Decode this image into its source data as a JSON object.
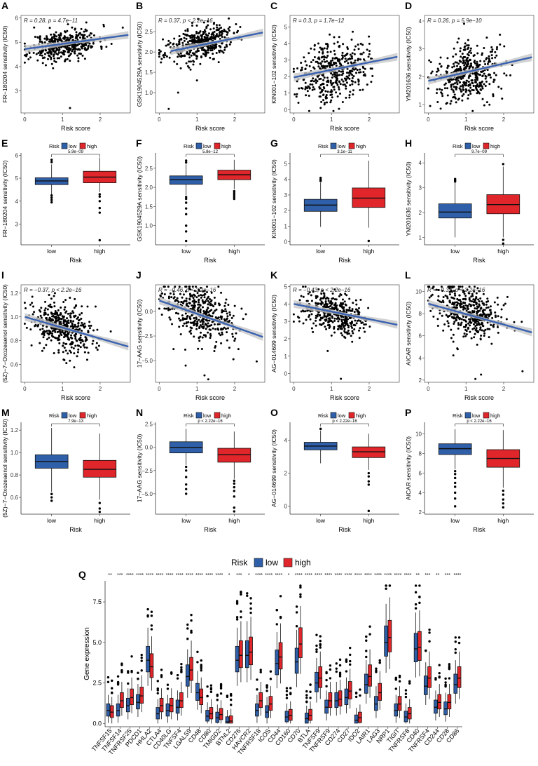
{
  "figure": {
    "colors": {
      "low": "#2f5fa8",
      "high": "#e0262a",
      "line": "#3a62b0",
      "band": "#c8c8c8",
      "point": "#000000"
    },
    "risk_legend": {
      "title": "Risk",
      "low": "low",
      "high": "high"
    }
  },
  "chart_data": [
    {
      "id": "A",
      "type": "scatter",
      "title": "",
      "xlabel": "Risk score",
      "ylabel": "FR−180204 sensitivity (IC50)",
      "stat": "R = 0.28, p = 4.7e−11",
      "xlim": [
        -0.1,
        2.8
      ],
      "ylim": [
        2.1,
        6.1
      ],
      "xticks": [
        "0",
        "1",
        "2"
      ],
      "yticks": [
        "3",
        "4",
        "5",
        "6"
      ],
      "xticks_v": [
        0,
        1,
        2
      ],
      "yticks_v": [
        3,
        4,
        5,
        6
      ],
      "trend": [
        [
          0,
          4.72
        ],
        [
          2.75,
          5.3
        ]
      ],
      "center": [
        1.05,
        4.9
      ],
      "spread": [
        0.45,
        0.3
      ],
      "slope": 0.21,
      "seed": 11,
      "outliers": [
        [
          1.2,
          2.3
        ],
        [
          0.1,
          4.3
        ],
        [
          2.6,
          5.6
        ]
      ]
    },
    {
      "id": "B",
      "type": "scatter",
      "title": "",
      "xlabel": "Risk score",
      "ylabel": "GSK1904529A sensitivity (IC50)",
      "stat": "R = 0.37, p < 2.2e−16",
      "xlim": [
        -0.1,
        2.8
      ],
      "ylim": [
        0.5,
        2.9
      ],
      "xticks": [
        "0",
        "1",
        "2"
      ],
      "yticks": [
        "1.0",
        "1.5",
        "2.0",
        "2.5"
      ],
      "xticks_v": [
        0,
        1,
        2
      ],
      "yticks_v": [
        1.0,
        1.5,
        2.0,
        2.5
      ],
      "trend": [
        [
          0.3,
          2.02
        ],
        [
          2.75,
          2.48
        ]
      ],
      "center": [
        1.05,
        2.2
      ],
      "spread": [
        0.45,
        0.2
      ],
      "slope": 0.19,
      "seed": 23,
      "outliers": [
        [
          0.25,
          0.6
        ],
        [
          0.5,
          1.0
        ],
        [
          1.0,
          1.3
        ]
      ]
    },
    {
      "id": "C",
      "type": "scatter",
      "title": "",
      "xlabel": "Risk score",
      "ylabel": "KIN001−102 sensitivity (IC50)",
      "stat": "R = 0.3, p = 1.7e−12",
      "xlim": [
        -0.1,
        2.8
      ],
      "ylim": [
        -0.2,
        5.7
      ],
      "xticks": [
        "0",
        "1",
        "2"
      ],
      "yticks": [
        "0",
        "1",
        "2",
        "3",
        "4",
        "5"
      ],
      "xticks_v": [
        0,
        1,
        2
      ],
      "yticks_v": [
        0,
        1,
        2,
        3,
        4,
        5
      ],
      "trend": [
        [
          0,
          1.95
        ],
        [
          2.75,
          3.2
        ]
      ],
      "center": [
        1.05,
        2.4
      ],
      "spread": [
        0.45,
        0.9
      ],
      "slope": 0.45,
      "seed": 37,
      "outliers": [
        [
          1.2,
          0.05
        ]
      ]
    },
    {
      "id": "D",
      "type": "scatter",
      "title": "",
      "xlabel": "Risk score",
      "ylabel": "YM201636 sensitivity (IC50)",
      "stat": "R = 0.26, p = 5.9e−10",
      "xlim": [
        -0.1,
        2.8
      ],
      "ylim": [
        0.7,
        4.2
      ],
      "xticks": [
        "0",
        "1",
        "2"
      ],
      "yticks": [
        "1",
        "2",
        "3",
        "4"
      ],
      "xticks_v": [
        0,
        1,
        2
      ],
      "yticks_v": [
        1,
        2,
        3,
        4
      ],
      "trend": [
        [
          0,
          1.85
        ],
        [
          2.75,
          2.7
        ]
      ],
      "center": [
        1.05,
        2.1
      ],
      "spread": [
        0.45,
        0.5
      ],
      "slope": 0.3,
      "seed": 41,
      "outliers": [
        [
          0.05,
          0.95
        ],
        [
          0.95,
          3.9
        ]
      ]
    },
    {
      "id": "E",
      "type": "box",
      "xlabel": "Risk",
      "ylabel": "FR−180204 sensitivity (IC50)",
      "pvalue": "5.9e−09",
      "categories": [
        "low",
        "high"
      ],
      "ylim": [
        2.1,
        6.1
      ],
      "yticks": [
        "3",
        "4",
        "5",
        "6"
      ],
      "yticks_v": [
        3,
        4,
        5,
        6
      ],
      "boxes": [
        {
          "q1": 4.72,
          "median": 4.88,
          "q3": 5.02,
          "wlo": 4.3,
          "whi": 5.6,
          "outliers": [
            4.25,
            4.15,
            4.05,
            3.95,
            5.7,
            5.8
          ]
        },
        {
          "q1": 4.8,
          "median": 5.05,
          "q3": 5.3,
          "wlo": 4.4,
          "whi": 5.9,
          "outliers": [
            4.3,
            4.2,
            4.0,
            3.7,
            3.5,
            2.3
          ]
        }
      ]
    },
    {
      "id": "F",
      "type": "box",
      "xlabel": "Risk",
      "ylabel": "GSK1904529A sensitivity (IC50)",
      "pvalue": "5.8e−12",
      "categories": [
        "low",
        "high"
      ],
      "ylim": [
        0.5,
        2.9
      ],
      "yticks": [
        "1.0",
        "1.5",
        "2.0",
        "2.5"
      ],
      "yticks_v": [
        1.0,
        1.5,
        2.0,
        2.5
      ],
      "boxes": [
        {
          "q1": 2.08,
          "median": 2.2,
          "q3": 2.3,
          "wlo": 1.8,
          "whi": 2.6,
          "outliers": [
            1.75,
            1.7,
            1.6,
            1.45,
            1.3,
            1.0,
            0.85,
            0.6,
            2.65,
            2.7
          ]
        },
        {
          "q1": 2.2,
          "median": 2.33,
          "q3": 2.45,
          "wlo": 1.95,
          "whi": 2.72,
          "outliers": [
            1.9,
            1.85,
            1.8,
            1.75,
            1.7
          ]
        }
      ]
    },
    {
      "id": "G",
      "type": "box",
      "xlabel": "Risk",
      "ylabel": "KIN001−102 sensitivity (IC50)",
      "pvalue": "3.1e−11",
      "categories": [
        "low",
        "high"
      ],
      "ylim": [
        -0.2,
        5.7
      ],
      "yticks": [
        "0",
        "1",
        "2",
        "3",
        "4",
        "5"
      ],
      "yticks_v": [
        0,
        1,
        2,
        3,
        4,
        5
      ],
      "boxes": [
        {
          "q1": 1.95,
          "median": 2.35,
          "q3": 2.72,
          "wlo": 0.95,
          "whi": 3.8,
          "outliers": [
            3.9,
            4.0,
            4.1
          ]
        },
        {
          "q1": 2.2,
          "median": 2.8,
          "q3": 3.45,
          "wlo": 0.9,
          "whi": 5.2,
          "outliers": [
            0.05
          ]
        }
      ]
    },
    {
      "id": "H",
      "type": "box",
      "xlabel": "Risk",
      "ylabel": "YM201636 sensitivity (IC50)",
      "pvalue": "9.7e−09",
      "categories": [
        "low",
        "high"
      ],
      "ylim": [
        0.7,
        4.4
      ],
      "yticks": [
        "1",
        "2",
        "3",
        "4"
      ],
      "yticks_v": [
        1,
        2,
        3,
        4
      ],
      "boxes": [
        {
          "q1": 1.78,
          "median": 2.02,
          "q3": 2.35,
          "wlo": 1.0,
          "whi": 3.2,
          "outliers": [
            3.25,
            3.3,
            3.35
          ]
        },
        {
          "q1": 1.95,
          "median": 2.32,
          "q3": 2.72,
          "wlo": 1.0,
          "whi": 3.85,
          "outliers": [
            0.75,
            0.9,
            3.95
          ]
        }
      ]
    },
    {
      "id": "I",
      "type": "scatter",
      "title": "",
      "xlabel": "Risk score",
      "ylabel": "(5Z)−7−Oxozeaenol sensitivity (IC50)",
      "stat": "R = −0.37, p < 2.2e−16",
      "xlim": [
        -0.1,
        2.8
      ],
      "ylim": [
        0.45,
        1.27
      ],
      "xticks": [
        "0",
        "1",
        "2"
      ],
      "yticks": [
        "0.6",
        "0.8",
        "1.0",
        "1.2"
      ],
      "xticks_v": [
        0,
        1,
        2
      ],
      "yticks_v": [
        0.6,
        0.8,
        1.0,
        1.2
      ],
      "trend": [
        [
          0,
          1.0
        ],
        [
          2.75,
          0.75
        ]
      ],
      "center": [
        1.05,
        0.9
      ],
      "spread": [
        0.45,
        0.1
      ],
      "slope": -0.09,
      "seed": 53,
      "outliers": [
        [
          0.2,
          1.17
        ],
        [
          0.8,
          1.2
        ]
      ]
    },
    {
      "id": "J",
      "type": "scatter",
      "title": "",
      "xlabel": "Risk score",
      "ylabel": "17−AAG sensitivity (IC50)",
      "stat": "R = −0.46, p < 2.2e−16",
      "xlim": [
        -0.1,
        2.8
      ],
      "ylim": [
        -7.2,
        2.7
      ],
      "xticks": [
        "0",
        "1",
        "2"
      ],
      "yticks": [
        "−5.0",
        "−2.5",
        "0.0"
      ],
      "xticks_v": [
        0,
        1,
        2
      ],
      "yticks_v": [
        -5,
        -2.5,
        0
      ],
      "trend": [
        [
          0,
          1.1
        ],
        [
          2.75,
          -2.6
        ]
      ],
      "center": [
        1.05,
        -0.3
      ],
      "spread": [
        0.45,
        1.3
      ],
      "slope": -1.3,
      "seed": 67,
      "outliers": [
        [
          1.2,
          -6.5
        ],
        [
          1.3,
          -6.9
        ],
        [
          0.7,
          -5.5
        ]
      ]
    },
    {
      "id": "K",
      "type": "scatter",
      "title": "",
      "xlabel": "Risk score",
      "ylabel": "AG−014699 sensitivity (IC50)",
      "stat": "R = −0.43, p < 2.2e−16",
      "xlim": [
        -0.1,
        2.8
      ],
      "ylim": [
        -0.5,
        5.1
      ],
      "xticks": [
        "0",
        "1",
        "2"
      ],
      "yticks": [
        "0",
        "1",
        "2",
        "3",
        "4",
        "5"
      ],
      "xticks_v": [
        0,
        1,
        2
      ],
      "yticks_v": [
        0,
        1,
        2,
        3,
        4,
        5
      ],
      "trend": [
        [
          0,
          4.0
        ],
        [
          2.75,
          2.8
        ]
      ],
      "center": [
        1.05,
        3.5
      ],
      "spread": [
        0.45,
        0.55
      ],
      "slope": -0.45,
      "seed": 79,
      "outliers": [
        [
          1.25,
          -0.3
        ],
        [
          0.9,
          1.3
        ]
      ]
    },
    {
      "id": "L",
      "type": "scatter",
      "title": "",
      "xlabel": "Risk score",
      "ylabel": "AICAR sensitivity (IC50)",
      "stat": "R = −0.37, p < 2.2e−16",
      "xlim": [
        -0.1,
        2.8
      ],
      "ylim": [
        1.8,
        10.6
      ],
      "xticks": [
        "0",
        "1",
        "2"
      ],
      "yticks": [
        "2",
        "4",
        "6",
        "8",
        "10"
      ],
      "xticks_v": [
        0,
        1,
        2
      ],
      "yticks_v": [
        2,
        4,
        6,
        8,
        10
      ],
      "trend": [
        [
          0,
          8.9
        ],
        [
          2.75,
          6.3
        ]
      ],
      "center": [
        1.05,
        8.2
      ],
      "spread": [
        0.45,
        1.2
      ],
      "slope": -0.9,
      "seed": 89,
      "outliers": [
        [
          1.25,
          2.1
        ],
        [
          1.4,
          2.5
        ],
        [
          2.5,
          2.8
        ]
      ]
    },
    {
      "id": "M",
      "type": "box",
      "xlabel": "Risk",
      "ylabel": "(5Z)−7−Oxozeaenol sensitivity (IC50)",
      "pvalue": "7.9e−13",
      "categories": [
        "low",
        "high"
      ],
      "ylim": [
        0.45,
        1.27
      ],
      "yticks": [
        "0.6",
        "0.8",
        "1.0",
        "1.2"
      ],
      "yticks_v": [
        0.6,
        0.8,
        1.0,
        1.2
      ],
      "boxes": [
        {
          "q1": 0.86,
          "median": 0.92,
          "q3": 0.98,
          "wlo": 0.65,
          "whi": 1.22,
          "outliers": [
            0.63,
            0.6,
            0.57
          ]
        },
        {
          "q1": 0.78,
          "median": 0.85,
          "q3": 0.93,
          "wlo": 0.58,
          "whi": 1.17,
          "outliers": [
            0.55,
            0.5,
            0.47
          ]
        }
      ]
    },
    {
      "id": "N",
      "type": "box",
      "xlabel": "Risk",
      "ylabel": "17−AAG sensitivity (IC50)",
      "pvalue": "p < 2.22e−16",
      "categories": [
        "low",
        "high"
      ],
      "ylim": [
        -7.2,
        2.7
      ],
      "yticks": [
        "−5.0",
        "−2.5",
        "0.0",
        "2.5"
      ],
      "yticks_v": [
        -5,
        -2.5,
        0,
        2.5
      ],
      "boxes": [
        {
          "q1": -0.6,
          "median": 0.0,
          "q3": 0.6,
          "wlo": -1.9,
          "whi": 2.0,
          "outliers": [
            -2.1,
            -2.5,
            -3.2,
            -4.0,
            -4.5,
            -5.0
          ]
        },
        {
          "q1": -1.6,
          "median": -0.8,
          "q3": -0.1,
          "wlo": -3.4,
          "whi": 1.7,
          "outliers": [
            -3.6,
            -3.9,
            -4.3,
            -4.7,
            -5.3,
            -6.5,
            -6.9
          ]
        }
      ]
    },
    {
      "id": "O",
      "type": "box",
      "xlabel": "Risk",
      "ylabel": "AG−014699 sensitivity (IC50)",
      "pvalue": "p < 2.22e−16",
      "categories": [
        "low",
        "high"
      ],
      "ylim": [
        -0.5,
        5.1
      ],
      "yticks": [
        "0",
        "2",
        "4"
      ],
      "yticks_v": [
        0,
        2,
        4
      ],
      "boxes": [
        {
          "q1": 3.42,
          "median": 3.65,
          "q3": 3.88,
          "wlo": 2.6,
          "whi": 4.6,
          "outliers": [
            4.7
          ]
        },
        {
          "q1": 2.95,
          "median": 3.3,
          "q3": 3.6,
          "wlo": 2.2,
          "whi": 4.4,
          "outliers": [
            2.0,
            1.8,
            1.5,
            1.3,
            -0.3
          ]
        }
      ]
    },
    {
      "id": "P",
      "type": "box",
      "xlabel": "Risk",
      "ylabel": "AICAR sensitivity (IC50)",
      "pvalue": "p < 2.22e−16",
      "categories": [
        "low",
        "high"
      ],
      "ylim": [
        1.8,
        11.2
      ],
      "yticks": [
        "2",
        "4",
        "6",
        "8",
        "10"
      ],
      "yticks_v": [
        2,
        4,
        6,
        8,
        10
      ],
      "boxes": [
        {
          "q1": 7.9,
          "median": 8.5,
          "q3": 9.0,
          "wlo": 6.4,
          "whi": 10.5,
          "outliers": [
            6.2,
            5.9,
            5.5,
            5.0,
            4.6,
            4.0,
            3.4,
            2.6
          ]
        },
        {
          "q1": 6.6,
          "median": 7.5,
          "q3": 8.4,
          "wlo": 4.5,
          "whi": 10.4,
          "outliers": [
            4.2,
            3.8,
            3.3,
            2.9,
            2.5
          ]
        }
      ]
    },
    {
      "id": "Q",
      "type": "box",
      "xlabel": "",
      "ylabel": "Gene expression",
      "legend_title": "Risk",
      "legend": [
        "low",
        "high"
      ],
      "ylim": [
        -0.2,
        8.8
      ],
      "yticks": [
        "0.0",
        "2.5",
        "5.0",
        "7.5"
      ],
      "yticks_v": [
        0,
        2.5,
        5,
        7.5
      ],
      "genes": [
        "TNFSF15",
        "TNFSF14",
        "TNFRSF25",
        "PDCD1",
        "HHLA2",
        "CTLA4",
        "CD40LG",
        "TNFSF4",
        "LGALS9",
        "CD48",
        "CD80",
        "TMIGD2",
        "BTNL2",
        "CD276",
        "HAVCR2",
        "TNFRSF18",
        "ICOS",
        "CD44",
        "CD160",
        "CD70",
        "BTLA",
        "TNFSF9",
        "TNFRSF9",
        "CD274",
        "CD27",
        "IDO2",
        "LAIR1",
        "LAG3",
        "NRP1",
        "TIGIT",
        "TNFRSF8",
        "CD40",
        "TNFRSF4",
        "CD244",
        "CD28",
        "CD86"
      ],
      "signif": [
        "**",
        "***",
        "****",
        "****",
        "****",
        "****",
        "****",
        "****",
        "****",
        "****",
        "****",
        "****",
        "*",
        "***",
        "*",
        "****",
        "****",
        "****",
        "*",
        "****",
        "****",
        "****",
        "****",
        "****",
        "****",
        "****",
        "****",
        "****",
        "****",
        "****",
        "****",
        "**",
        "***",
        "**",
        "***",
        "****"
      ],
      "low_medians": [
        0.8,
        0.8,
        1.1,
        1.3,
        3.9,
        0.6,
        0.8,
        1.0,
        2.9,
        1.9,
        0.45,
        0.35,
        0.1,
        3.9,
        4.2,
        0.8,
        0.7,
        3.7,
        0.4,
        3.8,
        0.3,
        2.5,
        1.0,
        1.4,
        1.6,
        0.2,
        2.4,
        1.2,
        5.0,
        0.8,
        0.4,
        4.6,
        2.3,
        1.0,
        0.9,
        2.4
      ],
      "high_medians": [
        0.7,
        1.4,
        1.6,
        1.7,
        3.5,
        1.1,
        1.1,
        1.4,
        3.3,
        1.6,
        0.6,
        0.55,
        0.15,
        4.2,
        4.4,
        1.4,
        1.2,
        4.1,
        0.5,
        4.9,
        0.5,
        2.8,
        1.4,
        1.5,
        2.0,
        0.35,
        2.9,
        1.9,
        5.3,
        1.2,
        0.6,
        4.7,
        2.8,
        1.3,
        1.3,
        2.8
      ]
    }
  ]
}
